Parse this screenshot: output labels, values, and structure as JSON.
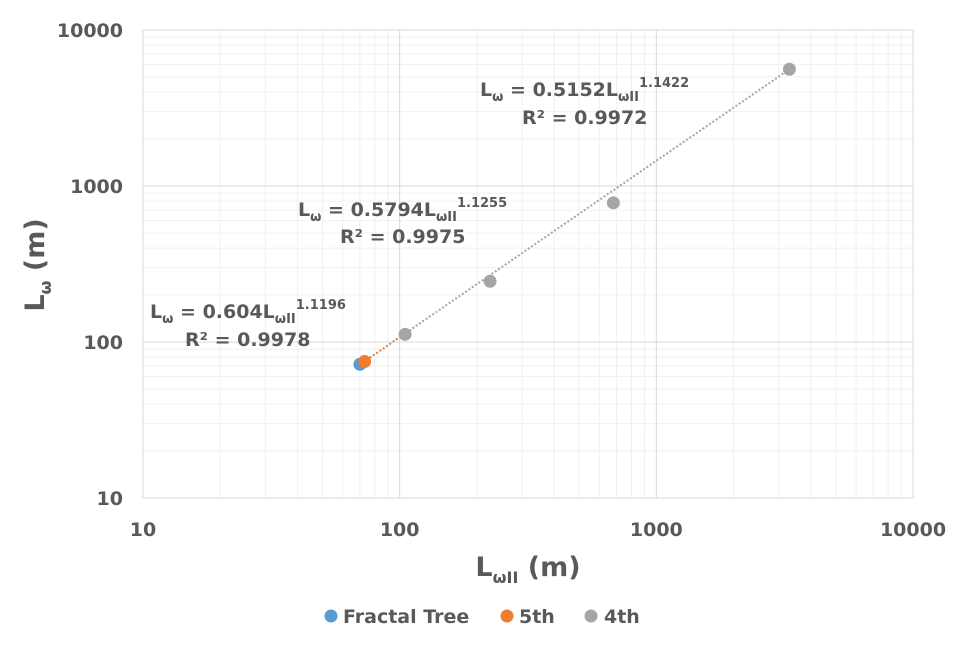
{
  "chart_data": {
    "type": "scatter",
    "title": "",
    "xlabel": {
      "main": "L",
      "sub": "ωII",
      "unit": " (m)"
    },
    "ylabel": {
      "main": "L",
      "sub": "ω",
      "unit": " (m)"
    },
    "xscale": "log",
    "yscale": "log",
    "xlim": [
      10,
      10000
    ],
    "ylim": [
      10,
      10000
    ],
    "xticks": [
      "10",
      "100",
      "1000",
      "10000"
    ],
    "yticks": [
      "10",
      "100",
      "1000",
      "10000"
    ],
    "grid": true,
    "legend_position": "bottom",
    "series": [
      {
        "name": "Fractal Tree",
        "color": "#5B9BD5",
        "points": [
          [
            70,
            72
          ]
        ]
      },
      {
        "name": "5th",
        "color": "#ED7D31",
        "points": [
          [
            73,
            75
          ]
        ]
      },
      {
        "name": "4th",
        "color": "#A5A5A5",
        "points": [
          [
            105,
            112
          ],
          [
            225,
            245
          ],
          [
            680,
            780
          ],
          [
            3300,
            5600
          ]
        ]
      }
    ],
    "trendline": {
      "color": "#A5A5A5",
      "from": [
        72,
        74
      ],
      "to": [
        3300,
        5600
      ]
    },
    "annotations": [
      {
        "lhs": "L",
        "lhs_sub": "ω",
        "eq_mid": " = 0.604L",
        "rhs_sub": "ωII",
        "exp": "1.1196",
        "r2": "R² = 0.9978"
      },
      {
        "lhs": "L",
        "lhs_sub": "ω",
        "eq_mid": " = 0.5794L",
        "rhs_sub": "ωII",
        "exp": "1.1255",
        "r2": "R² = 0.9975"
      },
      {
        "lhs": "L",
        "lhs_sub": "ω",
        "eq_mid": " = 0.5152L",
        "rhs_sub": "ωII",
        "exp": "1.1422",
        "r2": "R² = 0.9972"
      }
    ]
  }
}
